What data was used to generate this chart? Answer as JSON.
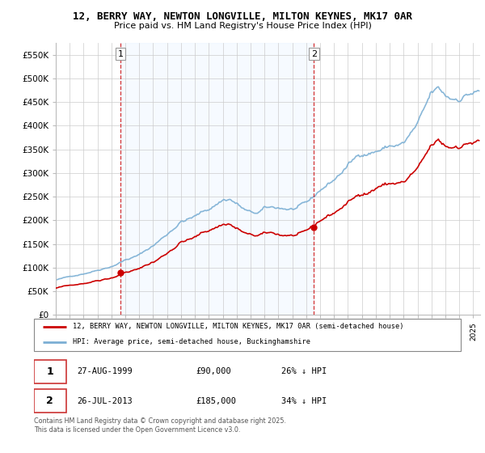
{
  "title": "12, BERRY WAY, NEWTON LONGVILLE, MILTON KEYNES, MK17 0AR",
  "subtitle": "Price paid vs. HM Land Registry's House Price Index (HPI)",
  "legend_line1": "12, BERRY WAY, NEWTON LONGVILLE, MILTON KEYNES, MK17 0AR (semi-detached house)",
  "legend_line2": "HPI: Average price, semi-detached house, Buckinghamshire",
  "footer": "Contains HM Land Registry data © Crown copyright and database right 2025.\nThis data is licensed under the Open Government Licence v3.0.",
  "annotation1_label": "1",
  "annotation1_date": "27-AUG-1999",
  "annotation1_price": "£90,000",
  "annotation1_hpi": "26% ↓ HPI",
  "annotation2_label": "2",
  "annotation2_date": "26-JUL-2013",
  "annotation2_price": "£185,000",
  "annotation2_hpi": "34% ↓ HPI",
  "price_color": "#cc0000",
  "hpi_color": "#7bafd4",
  "shade_color": "#ddeeff",
  "vline_color": "#cc0000",
  "ylim": [
    0,
    575000
  ],
  "yticks": [
    0,
    50000,
    100000,
    150000,
    200000,
    250000,
    300000,
    350000,
    400000,
    450000,
    500000,
    550000
  ],
  "xlim_start": 1995.0,
  "xlim_end": 2025.5,
  "purchase1_x": 1999.65,
  "purchase1_y": 90000,
  "purchase2_x": 2013.55,
  "purchase2_y": 185000,
  "background_color": "#ffffff",
  "grid_color": "#cccccc"
}
